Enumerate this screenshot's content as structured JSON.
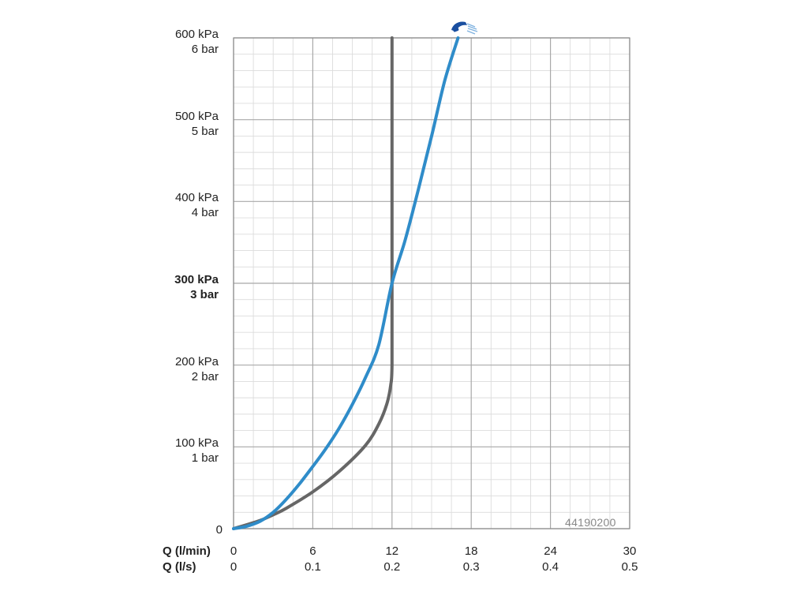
{
  "chart_data": {
    "type": "line",
    "y_labels": [
      {
        "value": 600,
        "kpa": "600 kPa",
        "bar": "6 bar",
        "bold": false
      },
      {
        "value": 500,
        "kpa": "500 kPa",
        "bar": "5 bar",
        "bold": false
      },
      {
        "value": 400,
        "kpa": "400 kPa",
        "bar": "4 bar",
        "bold": false
      },
      {
        "value": 300,
        "kpa": "300 kPa",
        "bar": "3 bar",
        "bold": true
      },
      {
        "value": 200,
        "kpa": "200 kPa",
        "bar": "2 bar",
        "bold": false
      },
      {
        "value": 100,
        "kpa": "100 kPa",
        "bar": "1 bar",
        "bold": false
      }
    ],
    "y_zero": "0",
    "x_axis_title_lmin": "Q (l/min)",
    "x_axis_title_ls": "Q (l/s)",
    "x_ticks_lmin": [
      "0",
      "6",
      "12",
      "18",
      "24",
      "30"
    ],
    "x_ticks_ls": [
      "0",
      "0.1",
      "0.2",
      "0.3",
      "0.4",
      "0.5"
    ],
    "xlim": [
      0,
      30
    ],
    "ylim": [
      0,
      600
    ],
    "grid": true,
    "product_code": "44190200",
    "series": [
      {
        "color": "#2f8cc9",
        "x": [
          0,
          1,
          2,
          3,
          4,
          5,
          6,
          7,
          8,
          9,
          10,
          11,
          12,
          13,
          14,
          15,
          16,
          17
        ],
        "y": [
          0,
          3,
          9,
          20,
          36,
          55,
          76,
          98,
          123,
          152,
          185,
          225,
          300,
          353,
          415,
          480,
          548,
          600
        ]
      },
      {
        "color": "#666666",
        "x": [
          0,
          2,
          3,
          4,
          6,
          8,
          10,
          11,
          11.6,
          11.9,
          12.0,
          12.0,
          12.0,
          12.0
        ],
        "y": [
          0,
          10,
          17,
          25,
          45,
          70,
          102,
          128,
          152,
          175,
          200,
          300,
          450,
          600
        ]
      }
    ],
    "icon": "showerhead-icon"
  }
}
